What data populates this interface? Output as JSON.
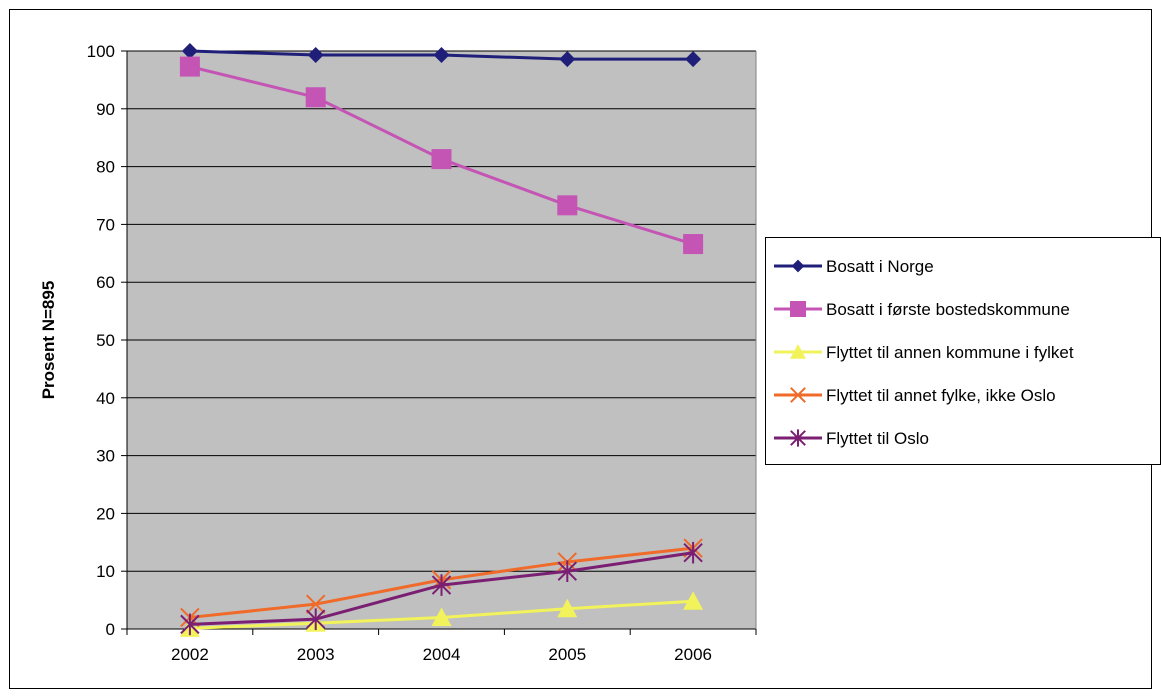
{
  "chart_data": {
    "type": "line",
    "title": "",
    "xlabel": "",
    "ylabel": "Prosent N=895",
    "categories": [
      "2002",
      "2003",
      "2004",
      "2005",
      "2006"
    ],
    "ylim": [
      0,
      100
    ],
    "yticks": [
      0,
      10,
      20,
      30,
      40,
      50,
      60,
      70,
      80,
      90,
      100
    ],
    "grid": true,
    "legend": "right",
    "plot_background": "#c0c0c0",
    "series": [
      {
        "name": "Bosatt i Norge",
        "values": [
          100,
          99.3,
          99.3,
          98.6,
          98.6
        ],
        "color": "#1f1f7a",
        "marker": "diamond"
      },
      {
        "name": "Bosatt i første bostedskommune",
        "values": [
          97.3,
          92,
          81.3,
          73.3,
          66.6
        ],
        "color": "#c455b5",
        "marker": "square"
      },
      {
        "name": "Flyttet til annen kommune i fylket",
        "values": [
          0.1,
          1,
          2,
          3.5,
          4.8
        ],
        "color": "#f2f25a",
        "marker": "triangle"
      },
      {
        "name": "Flyttet til annet fylke, ikke Oslo",
        "values": [
          2,
          4.3,
          8.5,
          11.6,
          14
        ],
        "color": "#f06a2a",
        "marker": "x"
      },
      {
        "name": "Flyttet til Oslo",
        "values": [
          0.8,
          1.7,
          7.6,
          10,
          13.2
        ],
        "color": "#7a1f72",
        "marker": "star"
      }
    ]
  }
}
